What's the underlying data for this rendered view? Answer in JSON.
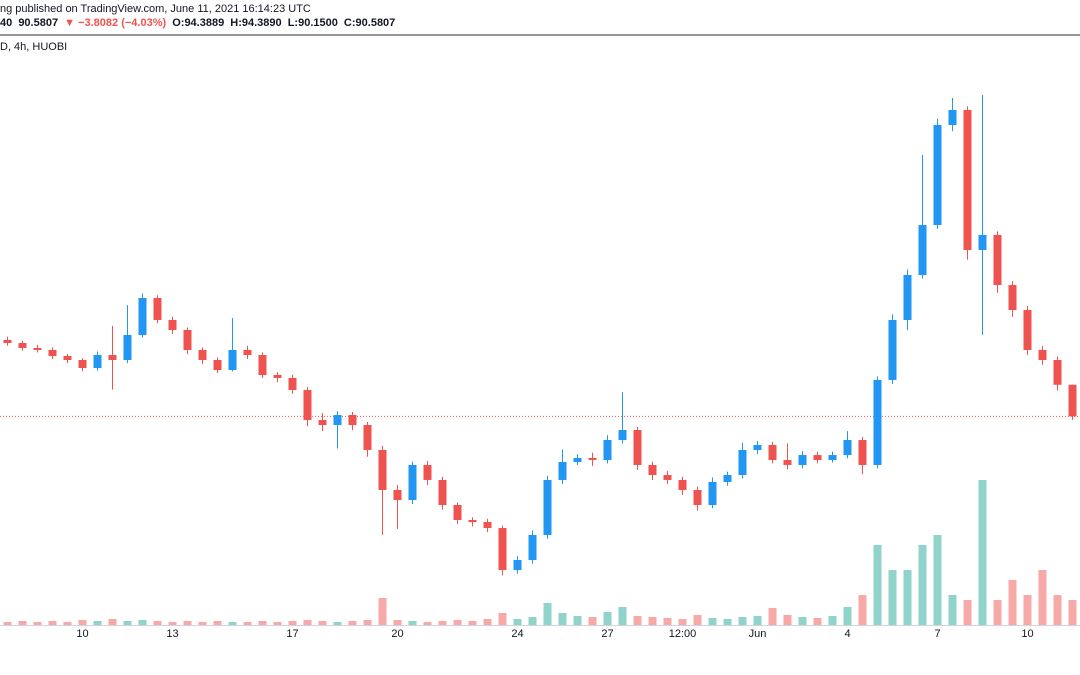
{
  "header": {
    "published": "ng published on TradingView.com, June 11, 2021 16:14:23 UTC",
    "symbol_tail": "40",
    "price": "90.5807",
    "change": "▼ −3.8082 (−4.03%)",
    "ohlc": [
      "O:94.3889",
      "H:94.3890",
      "L:90.1500",
      "C:90.5807"
    ],
    "interval": "D, 4h, HUOBI"
  },
  "chart_data": {
    "type": "candlestick",
    "categories": [
      null,
      null,
      null,
      null,
      null,
      "10",
      null,
      null,
      null,
      null,
      null,
      "13",
      null,
      null,
      null,
      null,
      null,
      null,
      null,
      "17",
      null,
      null,
      null,
      null,
      null,
      null,
      "20",
      null,
      null,
      null,
      null,
      null,
      null,
      null,
      "24",
      null,
      null,
      null,
      null,
      null,
      "27",
      null,
      null,
      null,
      null,
      "12:00",
      null,
      null,
      null,
      null,
      "Jun",
      null,
      null,
      null,
      null,
      null,
      "4",
      null,
      null,
      null,
      null,
      null,
      "7",
      null,
      null,
      null,
      null,
      null,
      "10",
      null,
      null,
      null
    ],
    "open": [
      99.8,
      99.43,
      98.83,
      98.59,
      97.86,
      97.38,
      96.41,
      97.98,
      97.38,
      100.4,
      104.86,
      102.21,
      101.0,
      98.59,
      97.38,
      96.17,
      98.59,
      97.98,
      95.57,
      95.21,
      93.76,
      90.14,
      89.53,
      90.74,
      89.53,
      86.52,
      81.69,
      80.48,
      84.71,
      82.9,
      79.88,
      78.07,
      77.83,
      77.1,
      72.03,
      73.24,
      76.26,
      82.9,
      85.07,
      85.55,
      85.31,
      87.72,
      88.93,
      84.71,
      83.5,
      82.9,
      81.69,
      79.88,
      82.66,
      83.5,
      86.52,
      87.12,
      85.31,
      84.71,
      85.91,
      85.31,
      85.91,
      87.72,
      84.71,
      94.97,
      102.21,
      107.64,
      113.67,
      125.74,
      127.55,
      110.66,
      112.47,
      106.43,
      103.41,
      98.59,
      97.38,
      94.3889
    ],
    "high": [
      100.2,
      99.7,
      99.2,
      98.9,
      98.1,
      97.6,
      98.4,
      101.5,
      104.0,
      105.4,
      105.2,
      102.6,
      101.3,
      98.9,
      97.7,
      102.45,
      99.1,
      98.3,
      95.9,
      95.6,
      94.1,
      91.0,
      91.2,
      91.1,
      89.9,
      87.0,
      82.3,
      85.1,
      85.2,
      83.3,
      80.2,
      78.4,
      78.2,
      77.4,
      73.7,
      76.8,
      83.4,
      86.6,
      86.0,
      86.2,
      88.3,
      93.5,
      89.3,
      85.1,
      84.0,
      83.3,
      82.1,
      83.2,
      83.9,
      87.4,
      87.6,
      87.5,
      87.3,
      86.4,
      86.3,
      86.3,
      88.8,
      88.1,
      95.4,
      102.9,
      108.3,
      122.12,
      126.5,
      129.0,
      128.0,
      129.36,
      112.9,
      106.9,
      103.9,
      99.1,
      97.8,
      94.389
    ],
    "low": [
      99.1,
      98.5,
      98.3,
      97.5,
      97.0,
      96.0,
      96.1,
      93.8,
      97.0,
      100.1,
      101.8,
      100.5,
      98.1,
      96.9,
      95.8,
      96.0,
      97.5,
      95.2,
      94.7,
      93.3,
      89.4,
      88.8,
      86.7,
      88.9,
      85.7,
      76.26,
      77.0,
      80.0,
      82.3,
      79.3,
      77.6,
      77.3,
      76.6,
      71.4,
      71.6,
      72.8,
      75.8,
      82.4,
      84.7,
      84.6,
      84.9,
      87.3,
      84.1,
      82.9,
      82.4,
      81.1,
      79.2,
      79.5,
      82.2,
      83.1,
      86.0,
      84.9,
      84.2,
      84.3,
      84.9,
      85.0,
      85.5,
      83.6,
      84.3,
      94.5,
      101.0,
      107.2,
      113.2,
      125.0,
      109.5,
      100.4,
      105.5,
      102.6,
      98.0,
      96.8,
      93.7,
      90.15
    ],
    "close": [
      99.43,
      98.83,
      98.59,
      97.86,
      97.38,
      96.41,
      97.98,
      97.38,
      100.4,
      104.86,
      102.21,
      101.0,
      98.59,
      97.38,
      96.17,
      98.59,
      97.98,
      95.57,
      95.21,
      93.76,
      90.14,
      89.53,
      90.74,
      89.53,
      86.52,
      81.69,
      80.48,
      84.71,
      82.9,
      79.88,
      78.07,
      77.83,
      77.1,
      72.03,
      73.24,
      76.26,
      82.9,
      85.07,
      85.55,
      85.31,
      87.72,
      88.93,
      84.71,
      83.5,
      82.9,
      81.69,
      79.88,
      82.66,
      83.5,
      86.52,
      87.12,
      85.31,
      84.71,
      85.91,
      85.31,
      85.91,
      87.72,
      84.71,
      94.97,
      102.21,
      107.64,
      113.67,
      125.74,
      127.55,
      110.66,
      112.47,
      106.43,
      103.41,
      98.59,
      97.38,
      94.3889,
      90.5807
    ],
    "volume": [
      30,
      40,
      30,
      40,
      30,
      50,
      40,
      60,
      40,
      50,
      40,
      30,
      40,
      30,
      40,
      30,
      30,
      40,
      30,
      40,
      50,
      40,
      30,
      40,
      50,
      270,
      50,
      40,
      30,
      40,
      50,
      40,
      60,
      120,
      60,
      80,
      220,
      120,
      90,
      80,
      130,
      180,
      90,
      80,
      70,
      60,
      100,
      70,
      60,
      80,
      90,
      170,
      100,
      80,
      70,
      90,
      180,
      300,
      800,
      550,
      550,
      800,
      900,
      300,
      250,
      1450,
      250,
      450,
      300,
      550,
      300,
      250
    ],
    "ylim": [
      66,
      136
    ],
    "vlim": [
      0,
      1600
    ],
    "up_color": "#2196f3",
    "down_color": "#ef5350",
    "up_volume_color": "#8fd3ca",
    "down_volume_color": "#f6a9a7"
  }
}
